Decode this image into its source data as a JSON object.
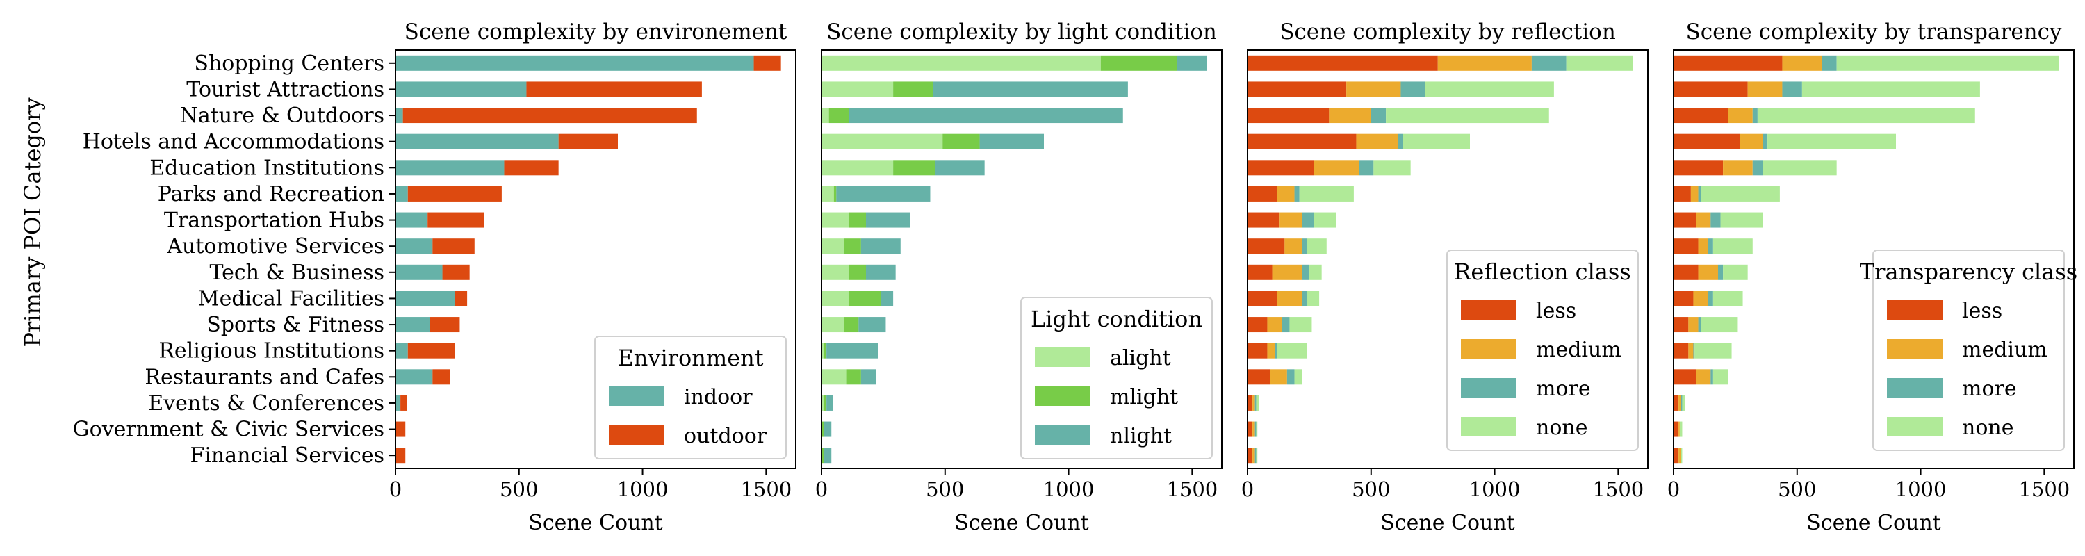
{
  "ylabel": "Primary POI Category",
  "categories": [
    "Shopping Centers",
    "Tourist Attractions",
    "Nature & Outdoors",
    "Hotels and Accommodations",
    "Education Institutions",
    "Parks and Recreation",
    "Transportation Hubs",
    "Automotive Services",
    "Tech & Business",
    "Medical Facilities",
    "Sports & Fitness",
    "Religious Institutions",
    "Restaurants and Cafes",
    "Events & Conferences",
    "Government & Civic Services",
    "Financial Services"
  ],
  "chart_data": [
    {
      "type": "bar",
      "orientation": "horizontal",
      "stacked": true,
      "title": "Scene complexity by environement",
      "xlabel": "Scene Count",
      "xlim": [
        0,
        1620
      ],
      "xticks": [
        0,
        500,
        1000,
        1500
      ],
      "legend_title": "Environment",
      "legend_position": "lower-right",
      "series": [
        {
          "name": "indoor",
          "color": "#66b2a8",
          "values": [
            1450,
            530,
            30,
            660,
            440,
            50,
            130,
            150,
            190,
            240,
            140,
            50,
            150,
            20,
            0,
            0
          ]
        },
        {
          "name": "outdoor",
          "color": "#dd4a10",
          "values": [
            110,
            710,
            1190,
            240,
            220,
            380,
            230,
            170,
            110,
            50,
            120,
            190,
            70,
            25,
            40,
            40
          ]
        }
      ]
    },
    {
      "type": "bar",
      "orientation": "horizontal",
      "stacked": true,
      "title": "Scene complexity by light condition",
      "xlabel": "Scene Count",
      "xlim": [
        0,
        1620
      ],
      "xticks": [
        0,
        500,
        1000,
        1500
      ],
      "legend_title": "Light condition",
      "legend_position": "lower-right",
      "series": [
        {
          "name": "alight",
          "color": "#b0ea98",
          "values": [
            1130,
            290,
            30,
            490,
            290,
            50,
            110,
            90,
            110,
            110,
            90,
            10,
            100,
            10,
            0,
            0
          ]
        },
        {
          "name": "mlight",
          "color": "#78cc48",
          "values": [
            310,
            160,
            80,
            150,
            170,
            10,
            70,
            70,
            70,
            130,
            60,
            10,
            60,
            10,
            10,
            10
          ]
        },
        {
          "name": "nlight",
          "color": "#66b2a8",
          "values": [
            120,
            790,
            1110,
            260,
            200,
            380,
            180,
            160,
            120,
            50,
            110,
            210,
            60,
            25,
            30,
            30
          ]
        }
      ]
    },
    {
      "type": "bar",
      "orientation": "horizontal",
      "stacked": true,
      "title": "Scene complexity by reflection",
      "xlabel": "Scene Count",
      "xlim": [
        0,
        1620
      ],
      "xticks": [
        0,
        500,
        1000,
        1500
      ],
      "legend_title": "Reflection class",
      "legend_position": "center-right",
      "series": [
        {
          "name": "less",
          "color": "#dd4a10",
          "values": [
            770,
            400,
            330,
            440,
            270,
            120,
            130,
            150,
            100,
            120,
            80,
            80,
            90,
            20,
            20,
            20
          ]
        },
        {
          "name": "medium",
          "color": "#ecab2e",
          "values": [
            380,
            220,
            170,
            170,
            180,
            70,
            90,
            70,
            120,
            100,
            60,
            30,
            70,
            10,
            10,
            10
          ]
        },
        {
          "name": "more",
          "color": "#66b2a8",
          "values": [
            140,
            100,
            60,
            20,
            60,
            20,
            50,
            20,
            30,
            20,
            30,
            10,
            30,
            5,
            5,
            5
          ]
        },
        {
          "name": "none",
          "color": "#b0ea98",
          "values": [
            270,
            520,
            660,
            270,
            150,
            220,
            90,
            80,
            50,
            50,
            90,
            120,
            30,
            10,
            5,
            5
          ]
        }
      ]
    },
    {
      "type": "bar",
      "orientation": "horizontal",
      "stacked": true,
      "title": "Scene complexity by transparency",
      "xlabel": "Scene Count",
      "xlim": [
        0,
        1620
      ],
      "xticks": [
        0,
        500,
        1000,
        1500
      ],
      "legend_title": "Transparency class",
      "legend_position": "center-right",
      "series": [
        {
          "name": "less",
          "color": "#dd4a10",
          "values": [
            440,
            300,
            220,
            270,
            200,
            70,
            90,
            100,
            100,
            80,
            60,
            60,
            90,
            20,
            20,
            20
          ]
        },
        {
          "name": "medium",
          "color": "#ecab2e",
          "values": [
            160,
            140,
            100,
            90,
            120,
            30,
            60,
            40,
            80,
            60,
            40,
            20,
            60,
            10,
            5,
            10
          ]
        },
        {
          "name": "more",
          "color": "#66b2a8",
          "values": [
            60,
            80,
            20,
            20,
            40,
            10,
            40,
            20,
            20,
            20,
            10,
            5,
            10,
            5,
            0,
            0
          ]
        },
        {
          "name": "none",
          "color": "#b0ea98",
          "values": [
            900,
            720,
            880,
            520,
            300,
            320,
            170,
            160,
            100,
            120,
            150,
            150,
            60,
            10,
            10,
            5
          ]
        }
      ]
    }
  ]
}
